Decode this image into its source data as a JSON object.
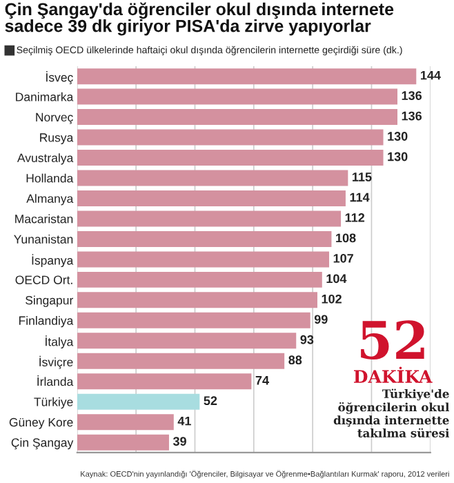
{
  "chart_data": {
    "type": "bar",
    "orientation": "horizontal",
    "title": "Çin Şangay'da öğrenciler okul dışında internete sadece 39 dk giriyor PISA'da zirve yapıyorlar",
    "subtitle": "Seçilmiş OECD ülkelerinde haftaiçi okul dışında öğrencilerin internette geçirdiği süre (dk.)",
    "categories": [
      "İsveç",
      "Danimarka",
      "Norveç",
      "Rusya",
      "Avustralya",
      "Hollanda",
      "Almanya",
      "Macaristan",
      "Yunanistan",
      "İspanya",
      "OECD Ort.",
      "Singapur",
      "Finlandiya",
      "İtalya",
      "İsviçre",
      "İrlanda",
      "Türkiye",
      "Güney Kore",
      "Çin Şangay"
    ],
    "values": [
      144,
      136,
      136,
      130,
      130,
      115,
      114,
      112,
      108,
      107,
      104,
      102,
      99,
      93,
      88,
      74,
      52,
      41,
      39
    ],
    "colors": [
      "#d4919f",
      "#d4919f",
      "#d4919f",
      "#d4919f",
      "#d4919f",
      "#d4919f",
      "#d4919f",
      "#d4919f",
      "#d4919f",
      "#d4919f",
      "#d4919f",
      "#d4919f",
      "#d4919f",
      "#d4919f",
      "#d4919f",
      "#d4919f",
      "#a8dde0",
      "#d4919f",
      "#d4919f"
    ],
    "xlim": [
      0,
      150
    ],
    "xticks": [
      {
        "value": 0,
        "label": null
      },
      {
        "value": 25,
        "label": null
      },
      {
        "value": 50,
        "label": null
      },
      {
        "value": 75,
        "label": null
      },
      {
        "value": 100,
        "label": null
      },
      {
        "value": 125,
        "label": null
      },
      {
        "value": 150,
        "label": null
      }
    ],
    "grid": "x",
    "tick_labels": "y",
    "data_labels": true,
    "annotations": [
      "52",
      "DAKİKA",
      "Türkiye'de öğrencilerin okul dışında internette takılma süresi",
      "Kaynak: OECD'nin yayınlandığı 'Öğrenciler, Bilgisayar ve Öğrenme•Bağlantıları Kurmak' raporu, 2012 verileri"
    ]
  }
}
